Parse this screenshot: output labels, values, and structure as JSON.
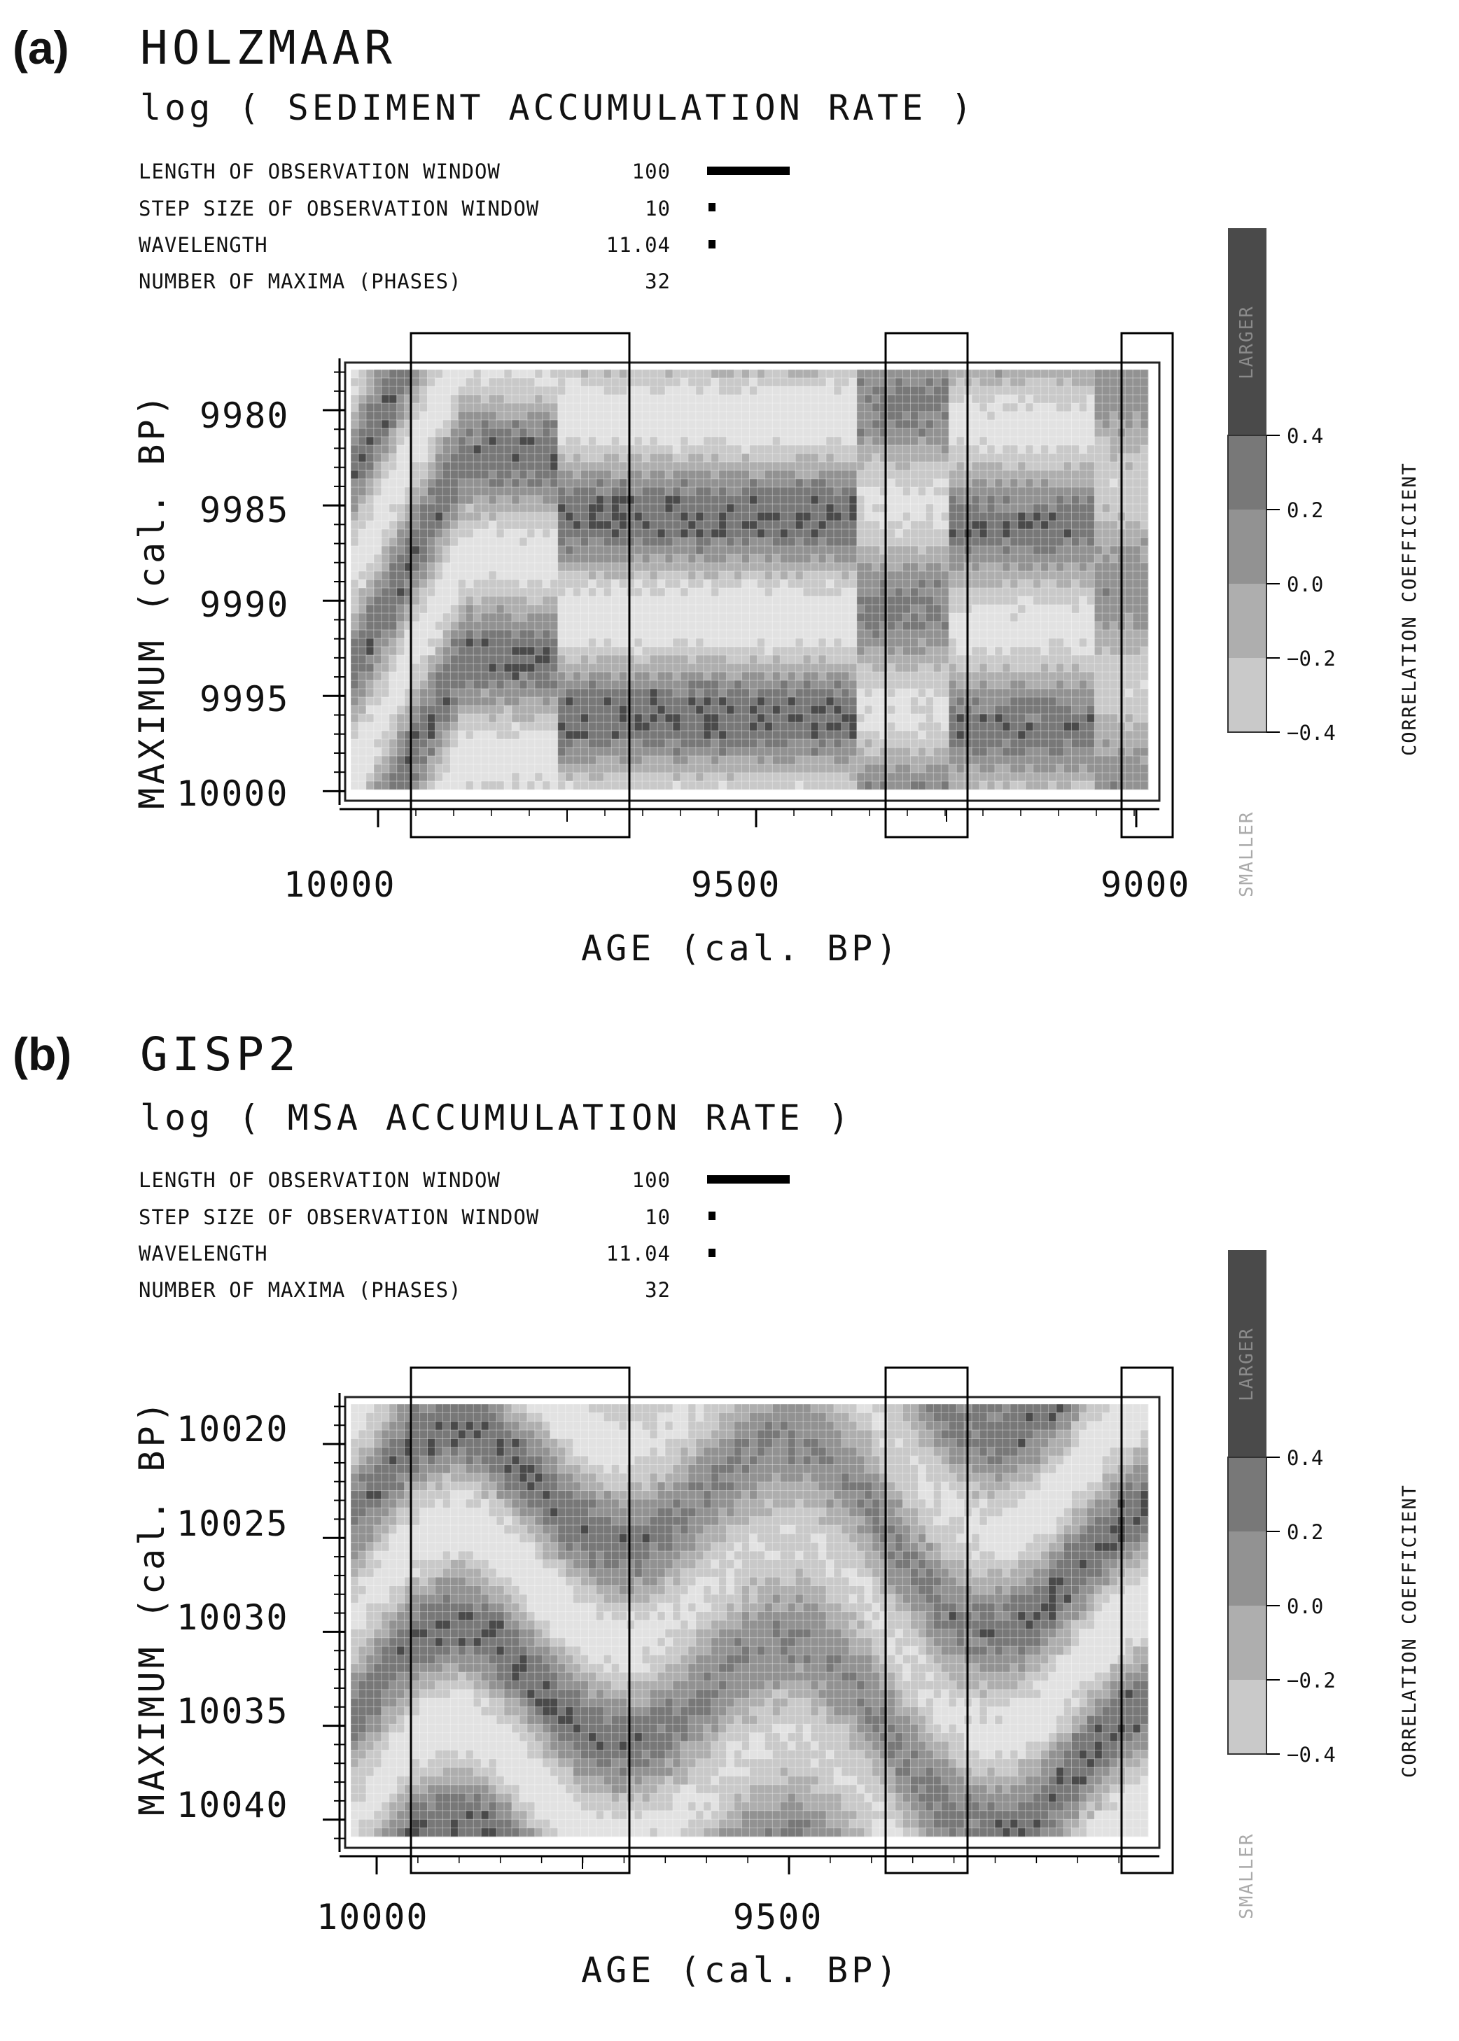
{
  "panels": [
    {
      "label": "(a)",
      "title": "HOLZMAAR",
      "subtitle": "log ( SEDIMENT ACCUMULATION RATE )",
      "params": [
        {
          "label": "LENGTH OF OBSERVATION WINDOW",
          "value": "100"
        },
        {
          "label": "STEP SIZE OF OBSERVATION WINDOW",
          "value": "10"
        },
        {
          "label": "WAVELENGTH",
          "value": "11.04"
        },
        {
          "label": "NUMBER OF MAXIMA (PHASES)",
          "value": "32"
        }
      ],
      "ylabel": "MAXIMUM (cal. BP)",
      "xlabel": "AGE (cal. BP)",
      "colorbar": {
        "label": "CORRELATION COEFFICIENT",
        "top": "LARGER",
        "bottom": "SMALLER",
        "ticks": [
          "0.4",
          "0.2",
          "0.0",
          "−0.2",
          "−0.4"
        ]
      }
    },
    {
      "label": "(b)",
      "title": "GISP2",
      "subtitle": "log ( MSA ACCUMULATION RATE )",
      "params": [
        {
          "label": "LENGTH OF OBSERVATION WINDOW",
          "value": "100"
        },
        {
          "label": "STEP SIZE OF OBSERVATION WINDOW",
          "value": "10"
        },
        {
          "label": "WAVELENGTH",
          "value": "11.04"
        },
        {
          "label": "NUMBER OF MAXIMA (PHASES)",
          "value": "32"
        }
      ],
      "ylabel": "MAXIMUM (cal. BP)",
      "xlabel": "AGE (cal. BP)",
      "colorbar": {
        "label": "CORRELATION COEFFICIENT",
        "top": "LARGER",
        "bottom": "SMALLER",
        "ticks": [
          "0.4",
          "0.2",
          "0.0",
          "−0.2",
          "−0.4"
        ]
      }
    }
  ],
  "chart_data": [
    {
      "type": "heatmap",
      "title": "HOLZMAAR",
      "subtitle": "log ( SEDIMENT ACCUMULATION RATE )",
      "xlabel": "AGE (cal. BP)",
      "ylabel": "MAXIMUM (cal. BP)",
      "x_reversed": true,
      "xlim": [
        10040,
        8980
      ],
      "ylim": [
        9977.5,
        10000.5
      ],
      "x_ticks": [
        10000,
        9500,
        9000
      ],
      "y_ticks": [
        9980,
        9985,
        9990,
        9995,
        10000
      ],
      "y_reversed": true,
      "value_range": [
        -0.4,
        0.4
      ],
      "colorbar_levels": [
        0.4,
        0.2,
        0.0,
        -0.2,
        -0.4
      ],
      "period_y": 11.04,
      "phase_shift_ages": [
        9760,
        9370,
        9050
      ],
      "highlight_boxes_age": [
        [
          10080,
          9810
        ],
        [
          9340,
          9250
        ],
        [
          9050,
          8980
        ]
      ],
      "colors": [
        "#e2e2e2",
        "#c9c9c9",
        "#aeaeae",
        "#929292",
        "#787878",
        "#4a4a4a"
      ]
    },
    {
      "type": "heatmap",
      "title": "GISP2",
      "subtitle": "log ( MSA ACCUMULATION RATE )",
      "xlabel": "AGE (cal. BP)",
      "ylabel": "MAXIMUM (cal. BP)",
      "x_reversed": true,
      "xlim": [
        10040,
        9070
      ],
      "ylim": [
        10017.5,
        10041.5
      ],
      "x_ticks": [
        10000,
        9500
      ],
      "y_ticks": [
        10020,
        10025,
        10030,
        10035,
        10040
      ],
      "y_reversed": true,
      "value_range": [
        -0.4,
        0.4
      ],
      "colorbar_levels": [
        0.4,
        0.2,
        0.0,
        -0.2,
        -0.4
      ],
      "period_y": 11.04,
      "highlight_boxes_age": [
        [
          10080,
          9810
        ],
        [
          9340,
          9250
        ],
        [
          9050,
          8980
        ]
      ],
      "colors": [
        "#e2e2e2",
        "#c9c9c9",
        "#aeaeae",
        "#929292",
        "#787878",
        "#4a4a4a"
      ]
    }
  ]
}
